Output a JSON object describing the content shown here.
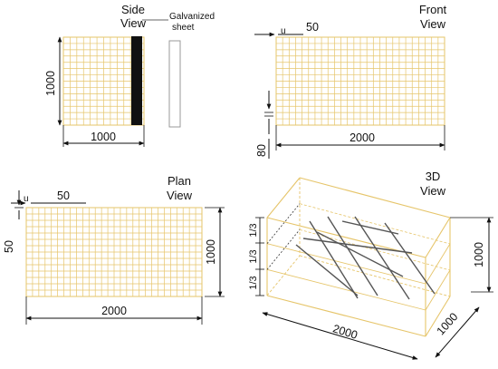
{
  "side_view": {
    "title_line1": "Side",
    "title_line2": "View",
    "sheet_label_line1": "Galvanized",
    "sheet_label_line2": "sheet",
    "dim_height": "1000",
    "dim_width": "1000"
  },
  "front_view": {
    "title_line1": "Front",
    "title_line2": "View",
    "dim_spacing": "50",
    "spacing_symbol": "u",
    "dim_width": "2000",
    "dim_offset": "80"
  },
  "plan_view": {
    "title_line1": "Plan",
    "title_line2": "View",
    "dim_spacing_top": "50",
    "spacing_symbol": "u",
    "dim_spacing_left": "50",
    "dim_height": "1000",
    "dim_width": "2000"
  },
  "view_3d": {
    "title_line1": "3D",
    "title_line2": "View",
    "third_top": "1/3",
    "third_mid": "1/3",
    "third_bottom": "1/3",
    "dim_height": "1000",
    "dim_length": "2000",
    "dim_depth": "1000"
  },
  "colors": {
    "mesh": "#e6c56a",
    "line": "#111111",
    "sheet": "#111111"
  }
}
